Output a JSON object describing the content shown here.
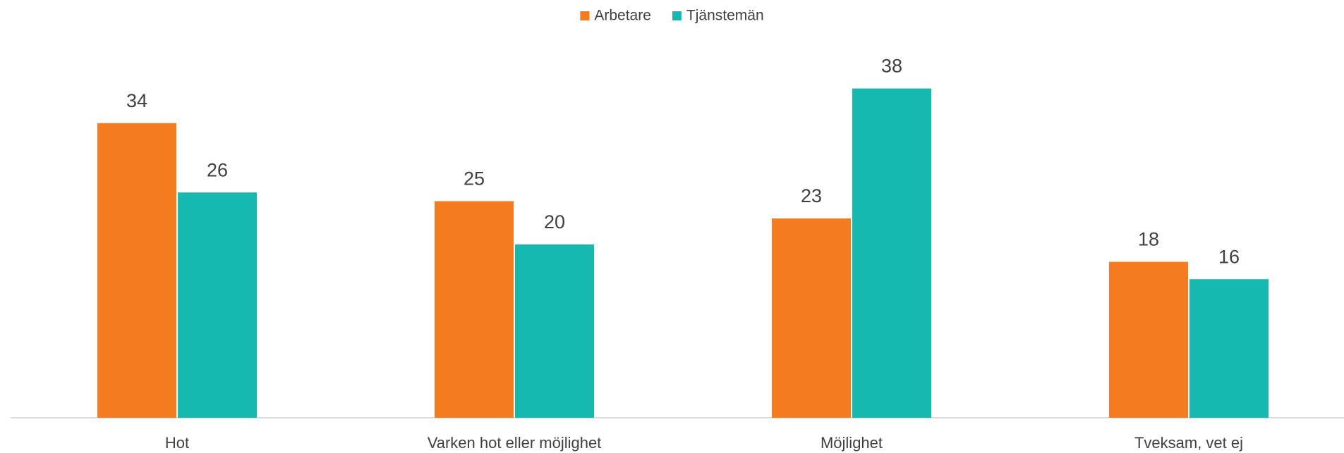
{
  "chart_data": {
    "type": "bar",
    "categories": [
      "Hot",
      "Varken hot eller möjlighet",
      "Möjlighet",
      "Tveksam, vet ej"
    ],
    "series": [
      {
        "name": "Arbetare",
        "color": "#F47C20",
        "values": [
          34,
          25,
          23,
          18
        ]
      },
      {
        "name": "Tjänstemän",
        "color": "#15B9B0",
        "values": [
          26,
          20,
          38,
          16
        ]
      }
    ],
    "ylim": [
      0,
      40
    ],
    "legend": "top"
  }
}
